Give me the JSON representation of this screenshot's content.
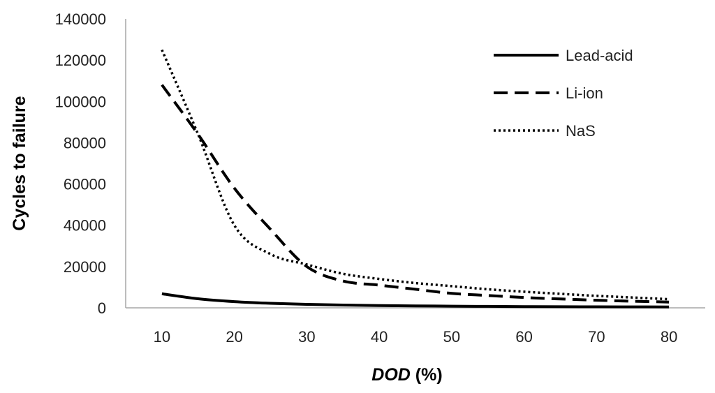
{
  "chart_data": {
    "type": "line",
    "title": "",
    "xlabel_main": "DOD",
    "xlabel_unit": " (%)",
    "ylabel": "Cycles to failure",
    "xlim": [
      5,
      85
    ],
    "ylim": [
      0,
      140000
    ],
    "x_ticks": [
      10,
      20,
      30,
      40,
      50,
      60,
      70,
      80
    ],
    "y_ticks": [
      0,
      20000,
      40000,
      60000,
      80000,
      100000,
      120000,
      140000
    ],
    "grid": false,
    "legend_position": "top-right",
    "x": [
      10,
      15,
      20,
      25,
      30,
      35,
      40,
      45,
      50,
      55,
      60,
      65,
      70,
      75,
      80
    ],
    "series": [
      {
        "name": "Lead-acid",
        "style": "solid",
        "color": "#000000",
        "values": [
          6800,
          4400,
          3000,
          2200,
          1700,
          1350,
          1100,
          950,
          800,
          700,
          620,
          550,
          500,
          460,
          420
        ]
      },
      {
        "name": "Li-ion",
        "style": "dashed",
        "color": "#000000",
        "values": [
          108000,
          84000,
          58000,
          38000,
          20000,
          13000,
          11000,
          9000,
          7000,
          6000,
          5000,
          4300,
          3700,
          3200,
          2800
        ]
      },
      {
        "name": "NaS",
        "style": "dotted",
        "color": "#000000",
        "values": [
          125000,
          84000,
          40000,
          26000,
          21000,
          16500,
          14000,
          12000,
          10500,
          9000,
          7800,
          6800,
          5800,
          5000,
          4200
        ]
      }
    ]
  }
}
